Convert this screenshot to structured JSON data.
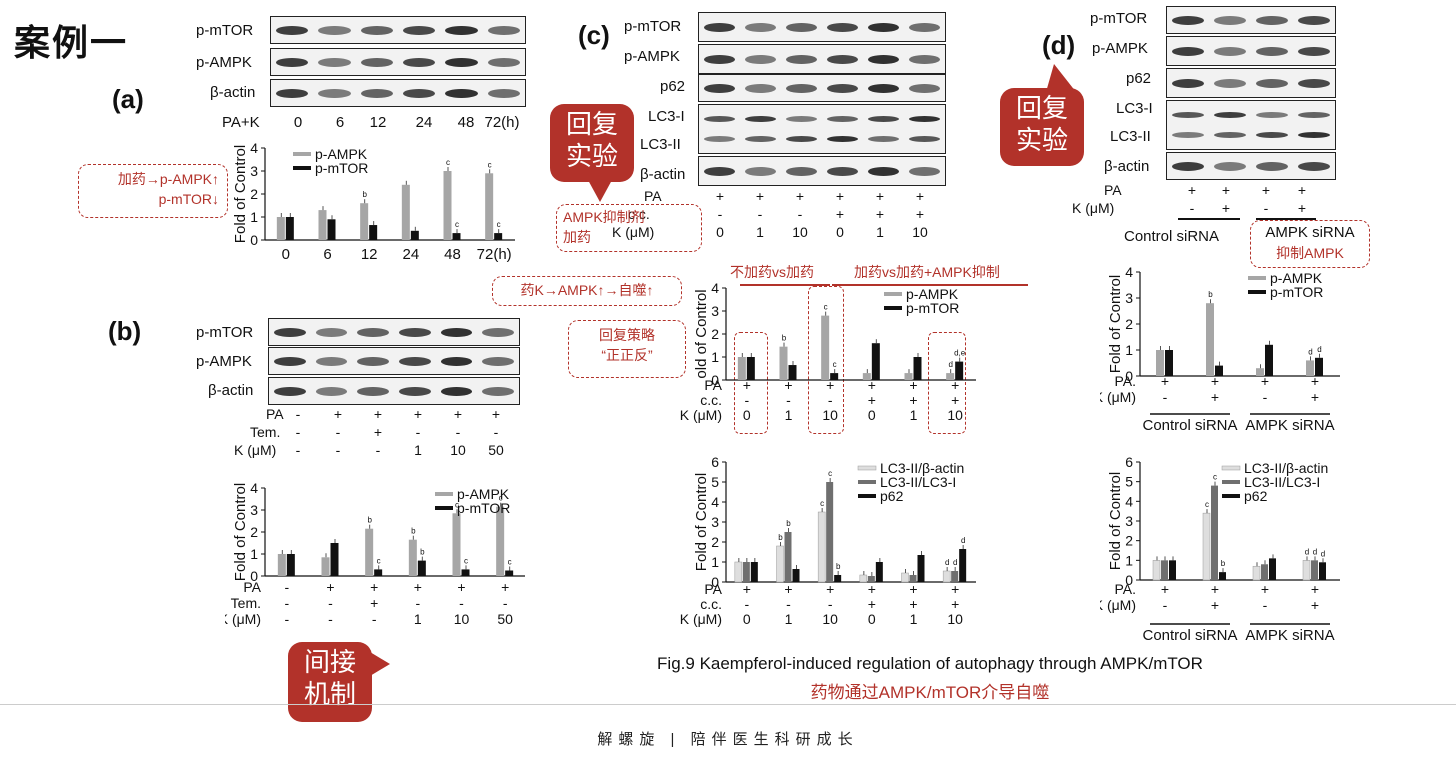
{
  "case_title": "案例一",
  "panels": {
    "a": {
      "letter": "(a)",
      "blot_labels": [
        "p-mTOR",
        "p-AMPK",
        "β-actin"
      ],
      "cond_label": "PA+K",
      "cond_values": [
        "0",
        "6",
        "12",
        "24",
        "48",
        "72(h)"
      ],
      "note": [
        "加药→p-AMPK↑",
        "p-mTOR↓"
      ]
    },
    "b": {
      "letter": "(b)",
      "blot_labels": [
        "p-mTOR",
        "p-AMPK",
        "β-actin"
      ],
      "cond_rows": [
        {
          "label": "PA",
          "values": [
            "-",
            "+",
            "+",
            "+",
            "+",
            "+"
          ]
        },
        {
          "label": "Tem.",
          "values": [
            "-",
            "-",
            "+",
            "-",
            "-",
            "-"
          ]
        },
        {
          "label": "K (μM)",
          "values": [
            "-",
            "-",
            "-",
            "1",
            "10",
            "50"
          ]
        }
      ]
    },
    "c": {
      "letter": "(c)",
      "blot_labels": [
        "p-mTOR",
        "p-AMPK",
        "p62",
        "LC3-I",
        "LC3-II",
        "β-actin"
      ],
      "cond_rows": [
        {
          "label": "PA",
          "values": [
            "+",
            "+",
            "+",
            "+",
            "+",
            "+"
          ]
        },
        {
          "label": "c.c.",
          "values": [
            "-",
            "-",
            "-",
            "+",
            "+",
            "+"
          ]
        },
        {
          "label": "K (μM)",
          "values": [
            "0",
            "1",
            "10",
            "0",
            "1",
            "10"
          ]
        }
      ],
      "bubble": [
        "回复",
        "实验"
      ],
      "inhibitor_note": [
        "AMPK抑制剂",
        "加药"
      ],
      "drug_note": "药K→AMPK↑→自噬↑",
      "strategy_note": [
        "回复策略",
        "“正正反”"
      ],
      "compare1": "不加药vs加药",
      "compare2": "加药vs加药+AMPK抑制"
    },
    "d": {
      "letter": "(d)",
      "blot_labels": [
        "p-mTOR",
        "p-AMPK",
        "p62",
        "LC3-I",
        "LC3-II",
        "β-actin"
      ],
      "cond_rows": [
        {
          "label": "PA",
          "values": [
            "+",
            "+",
            "+",
            "+"
          ]
        },
        {
          "label": "K (μM)",
          "values": [
            "-",
            "+",
            "-",
            "+"
          ]
        }
      ],
      "group_labels": [
        "Control siRNA",
        "AMPK siRNA"
      ],
      "group_note": "抑制AMPK",
      "bubble": [
        "回复",
        "实验"
      ]
    }
  },
  "mechanism_bubble": [
    "间接",
    "机制"
  ],
  "caption_en": "Fig.9 Kaempferol-induced regulation of autophagy through AMPK/mTOR",
  "caption_cn": "药物通过AMPK/mTOR介导自噬",
  "footer": "解螺旋  |  陪伴医生科研成长",
  "colors": {
    "gray_bar": "#a6a6a6",
    "black_bar": "#111111",
    "light_bar": "#dedede",
    "dark_gray_bar": "#6f6f6f",
    "accent_red": "#b2322a"
  },
  "chart_data": [
    {
      "id": "a",
      "type": "bar",
      "categories": [
        "0",
        "6",
        "12",
        "24",
        "48",
        "72(h)"
      ],
      "series": [
        {
          "name": "p-AMPK",
          "values": [
            1.0,
            1.3,
            1.6,
            2.4,
            3.0,
            2.9
          ]
        },
        {
          "name": "p-mTOR",
          "values": [
            1.0,
            0.9,
            0.65,
            0.4,
            0.3,
            0.3
          ]
        }
      ],
      "sig": [
        [
          "",
          "",
          "b",
          "",
          "c",
          "c"
        ],
        [
          "",
          "",
          "",
          "",
          "c",
          "c"
        ]
      ],
      "ylabel": "Fold of Control",
      "ylim": [
        0,
        4
      ],
      "yticks": [
        0,
        1,
        2,
        3,
        4
      ],
      "legend": "top-left"
    },
    {
      "id": "b",
      "type": "bar",
      "categories": [
        "1",
        "2",
        "3",
        "4",
        "5",
        "6"
      ],
      "cond_rows": [
        {
          "label": "PA",
          "values": [
            "-",
            "+",
            "+",
            "+",
            "+",
            "+"
          ]
        },
        {
          "label": "Tem.",
          "values": [
            "-",
            "-",
            "+",
            "-",
            "-",
            "-"
          ]
        },
        {
          "label": "K (μM)",
          "values": [
            "-",
            "-",
            "-",
            "1",
            "10",
            "50"
          ]
        }
      ],
      "series": [
        {
          "name": "p-AMPK",
          "values": [
            1.0,
            0.85,
            2.15,
            1.65,
            2.85,
            3.15
          ]
        },
        {
          "name": "p-mTOR",
          "values": [
            1.0,
            1.5,
            0.3,
            0.7,
            0.3,
            0.25
          ]
        }
      ],
      "sig": [
        [
          "",
          "",
          "b",
          "b",
          "c",
          "c"
        ],
        [
          "",
          "",
          "c",
          "b",
          "c",
          "c"
        ]
      ],
      "ylabel": "Fold of Control",
      "ylim": [
        0,
        4
      ],
      "yticks": [
        0,
        1,
        2,
        3,
        4
      ],
      "legend": "top"
    },
    {
      "id": "c1",
      "type": "bar",
      "categories": [
        "1",
        "2",
        "3",
        "4",
        "5",
        "6"
      ],
      "cond_rows": [
        {
          "label": "PA",
          "values": [
            "+",
            "+",
            "+",
            "+",
            "+",
            "+"
          ]
        },
        {
          "label": "c.c.",
          "values": [
            "-",
            "-",
            "-",
            "+",
            "+",
            "+"
          ]
        },
        {
          "label": "K (μM)",
          "values": [
            "0",
            "1",
            "10",
            "0",
            "1",
            "10"
          ]
        }
      ],
      "series": [
        {
          "name": "p-AMPK",
          "values": [
            1.0,
            1.45,
            2.8,
            0.3,
            0.3,
            0.3
          ]
        },
        {
          "name": "p-mTOR",
          "values": [
            1.0,
            0.65,
            0.3,
            1.6,
            1.0,
            0.8
          ]
        }
      ],
      "sig": [
        [
          "",
          "b",
          "c",
          "",
          "",
          "d"
        ],
        [
          "",
          "",
          "c",
          "",
          "",
          "d,e"
        ]
      ],
      "ylabel": "old of Control",
      "ylim": [
        0,
        4
      ],
      "yticks": [
        0,
        1,
        2,
        3,
        4
      ],
      "legend": "top-right"
    },
    {
      "id": "c2",
      "type": "bar",
      "categories": [
        "1",
        "2",
        "3",
        "4",
        "5",
        "6"
      ],
      "cond_rows": [
        {
          "label": "PA",
          "values": [
            "+",
            "+",
            "+",
            "+",
            "+",
            "+"
          ]
        },
        {
          "label": "c.c.",
          "values": [
            "-",
            "-",
            "-",
            "+",
            "+",
            "+"
          ]
        },
        {
          "label": "K (μM)",
          "values": [
            "0",
            "1",
            "10",
            "0",
            "1",
            "10"
          ]
        }
      ],
      "series": [
        {
          "name": "LC3-II/β-actin",
          "values": [
            1.0,
            1.8,
            3.5,
            0.35,
            0.45,
            0.55
          ]
        },
        {
          "name": "LC3-II/LC3-I",
          "values": [
            1.0,
            2.5,
            5.0,
            0.3,
            0.35,
            0.55
          ]
        },
        {
          "name": "p62",
          "values": [
            1.0,
            0.65,
            0.35,
            1.0,
            1.35,
            1.65
          ]
        }
      ],
      "sig": [
        [
          "",
          "b",
          "c",
          "",
          "",
          "d"
        ],
        [
          "",
          "b",
          "c",
          "",
          "",
          "d"
        ],
        [
          "",
          "",
          "b",
          "",
          "",
          "d"
        ]
      ],
      "ylabel": "Fold of Control",
      "ylim": [
        0,
        6
      ],
      "yticks": [
        0,
        1,
        2,
        3,
        4,
        5,
        6
      ],
      "legend": "top-right"
    },
    {
      "id": "d1",
      "type": "bar",
      "categories": [
        "1",
        "2",
        "3",
        "4"
      ],
      "cond_rows": [
        {
          "label": "PA.",
          "values": [
            "+",
            "+",
            "+",
            "+"
          ]
        },
        {
          "label": "K (μM)",
          "values": [
            "-",
            "+",
            "-",
            "+"
          ]
        }
      ],
      "group_labels": [
        "Control siRNA",
        "AMPK siRNA"
      ],
      "series": [
        {
          "name": "p-AMPK",
          "values": [
            1.0,
            2.8,
            0.3,
            0.6
          ]
        },
        {
          "name": "p-mTOR",
          "values": [
            1.0,
            0.4,
            1.2,
            0.7
          ]
        }
      ],
      "sig": [
        [
          "",
          "b",
          "",
          "d"
        ],
        [
          "",
          "",
          "",
          "d"
        ]
      ],
      "ylabel": "Fold of Control",
      "ylim": [
        0,
        4
      ],
      "yticks": [
        0,
        1,
        2,
        3,
        4
      ],
      "legend": "top-right"
    },
    {
      "id": "d2",
      "type": "bar",
      "categories": [
        "1",
        "2",
        "3",
        "4"
      ],
      "cond_rows": [
        {
          "label": "PA.",
          "values": [
            "+",
            "+",
            "+",
            "+"
          ]
        },
        {
          "label": "K (μM)",
          "values": [
            "-",
            "+",
            "-",
            "+"
          ]
        }
      ],
      "group_labels": [
        "Control siRNA",
        "AMPK siRNA"
      ],
      "series": [
        {
          "name": "LC3-II/β-actin",
          "values": [
            1.0,
            3.4,
            0.7,
            1.0
          ]
        },
        {
          "name": "LC3-II/LC3-I",
          "values": [
            1.0,
            4.8,
            0.8,
            1.0
          ]
        },
        {
          "name": "p62",
          "values": [
            1.0,
            0.4,
            1.1,
            0.9
          ]
        }
      ],
      "sig": [
        [
          "",
          "c",
          "",
          "d"
        ],
        [
          "",
          "c",
          "",
          "d"
        ],
        [
          "",
          "b",
          "",
          "d"
        ]
      ],
      "ylabel": "Fold of Control",
      "ylim": [
        0,
        6
      ],
      "yticks": [
        0,
        1,
        2,
        3,
        4,
        5,
        6
      ],
      "legend": "top-right"
    }
  ]
}
